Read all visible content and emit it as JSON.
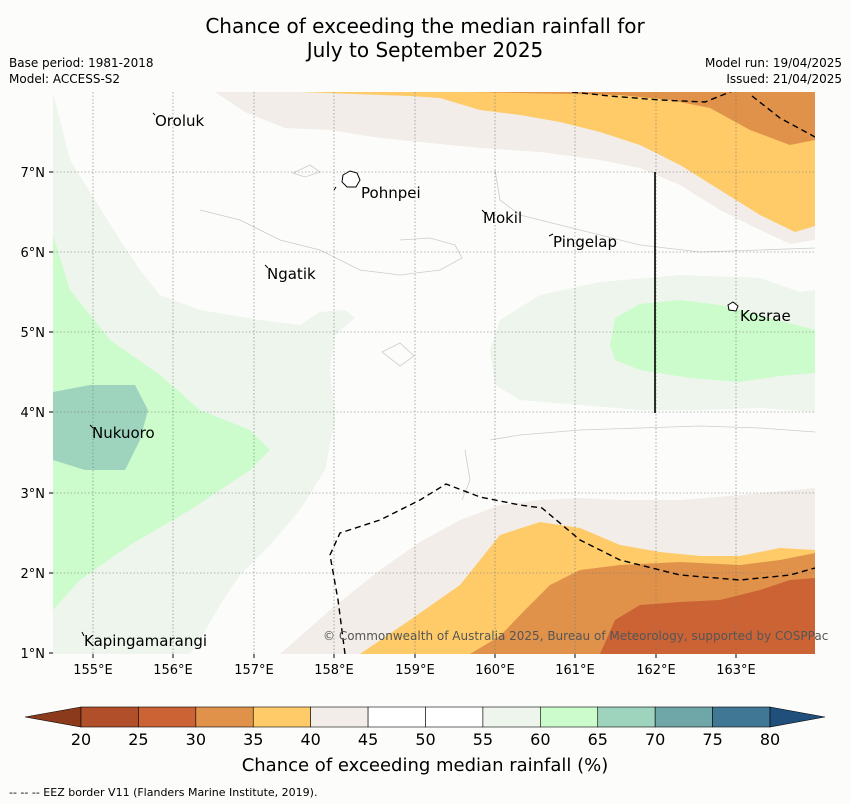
{
  "title_line1": "Chance of exceeding the median rainfall for",
  "title_line2": "July to September 2025",
  "meta_left": {
    "base_period": "Base period: 1981-2018",
    "model": "Model: ACCESS-S2"
  },
  "meta_right": {
    "model_run": "Model run: 19/04/2025",
    "issued": "Issued: 21/04/2025"
  },
  "copyright": "© Commonwealth of Australia 2025, Bureau of Meteorology, supported by COSPPac",
  "axes": {
    "lon_ticks": [
      "155°E",
      "156°E",
      "157°E",
      "158°E",
      "159°E",
      "160°E",
      "161°E",
      "162°E",
      "163°E"
    ],
    "lat_ticks": [
      "7°N",
      "6°N",
      "5°N",
      "4°N",
      "3°N",
      "2°N",
      "1°N"
    ]
  },
  "places": [
    {
      "name": "Oroluk"
    },
    {
      "name": "Pohnpei"
    },
    {
      "name": "Mokil"
    },
    {
      "name": "Pingelap"
    },
    {
      "name": "Ngatik"
    },
    {
      "name": "Kosrae"
    },
    {
      "name": "Nukuoro"
    },
    {
      "name": "Kapingamarangi"
    }
  ],
  "legend": {
    "title": "Chance of exceeding median rainfall (%)",
    "ticks": [
      "20",
      "25",
      "30",
      "35",
      "40",
      "45",
      "50",
      "55",
      "60",
      "65",
      "70",
      "75",
      "80"
    ],
    "colors": [
      "#8b3a1c",
      "#b14f2a",
      "#cc6335",
      "#e0924a",
      "#fecb68",
      "#f2ede8",
      "#ffffff",
      "#ffffff",
      "#edf5ec",
      "#ccfccc",
      "#9ed4be",
      "#6fa6a8",
      "#3f7795",
      "#1f4f7a"
    ]
  },
  "footnote": "--  --  -- EEZ border V11 (Flanders Marine Institute, 2019)."
}
